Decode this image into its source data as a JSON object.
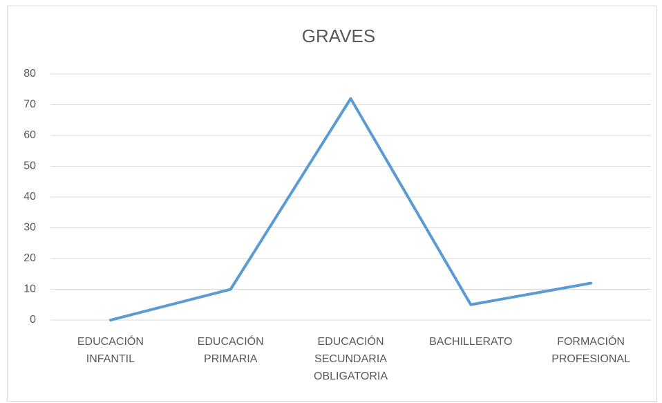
{
  "chart_data": {
    "type": "line",
    "title": "GRAVES",
    "categories": [
      "EDUCACIÓN INFANTIL",
      "EDUCACIÓN PRIMARIA",
      "EDUCACIÓN SECUNDARIA OBLIGATORIA",
      "BACHILLERATO",
      "FORMACIÓN PROFESIONAL"
    ],
    "values": [
      0,
      10,
      72,
      5,
      12
    ],
    "color": "#5b9bd5",
    "ylim": [
      0,
      80
    ],
    "yticks": [
      0,
      10,
      20,
      30,
      40,
      50,
      60,
      70,
      80
    ],
    "grid": true
  }
}
